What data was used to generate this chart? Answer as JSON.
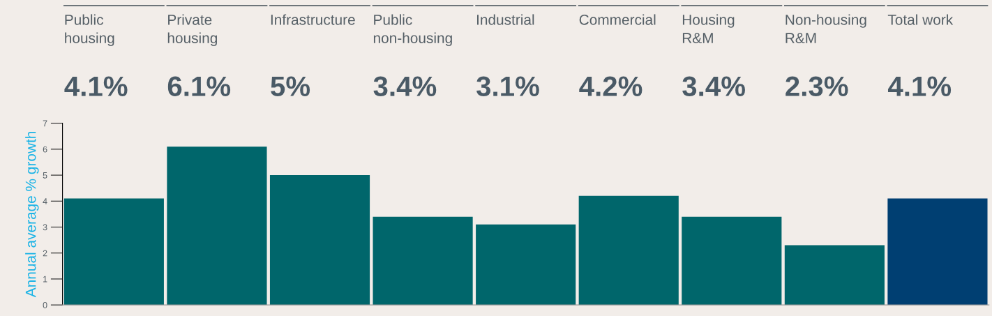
{
  "chart_data": {
    "type": "bar",
    "categories": [
      "Public\nhousing",
      "Private\nhousing",
      "Infrastructure",
      "Public\nnon-housing",
      "Industrial",
      "Commercial",
      "Housing\nR&M",
      "Non-housing\nR&M",
      "Total work"
    ],
    "values": [
      4.1,
      6.1,
      5,
      3.4,
      3.1,
      4.2,
      3.4,
      2.3,
      4.1
    ],
    "annotations": [
      "4.1%",
      "6.1%",
      "5%",
      "3.4%",
      "3.1%",
      "4.2%",
      "3.4%",
      "2.3%",
      "4.1%"
    ],
    "colors": [
      "#00666b",
      "#00666b",
      "#00666b",
      "#00666b",
      "#00666b",
      "#00666b",
      "#00666b",
      "#00666b",
      "#003f72"
    ],
    "ylabel": "Annual average % growth",
    "ylim": [
      0,
      7
    ],
    "yticks": [
      0,
      1,
      2,
      3,
      4,
      5,
      6,
      7
    ],
    "grid": false,
    "legend": false
  }
}
